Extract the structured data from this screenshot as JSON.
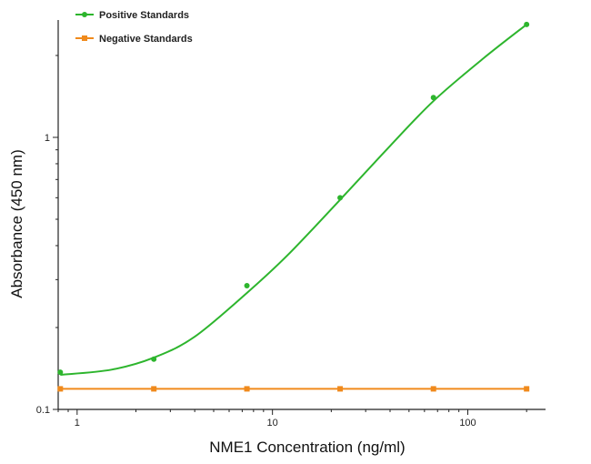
{
  "chart_data": {
    "type": "scatter",
    "xlabel": "NME1 Concentration (ng/ml)",
    "ylabel": "Absorbance (450 nm)",
    "x_scale": "log",
    "y_scale": "log",
    "xlim": [
      0.8,
      250
    ],
    "ylim": [
      0.1,
      2.7
    ],
    "x_ticks": [
      1,
      10,
      100
    ],
    "x_tick_labels": [
      "1",
      "10",
      "100"
    ],
    "y_ticks": [
      0.1,
      1
    ],
    "y_tick_labels": [
      "0.1",
      "1"
    ],
    "grid": false,
    "legend_position": "top-left",
    "series": [
      {
        "name": "Positive Standards",
        "color": "#2db52d",
        "marker": "circle",
        "fit_curve": true,
        "points": [
          {
            "x": 0.82,
            "y": 0.137
          },
          {
            "x": 2.47,
            "y": 0.153
          },
          {
            "x": 7.4,
            "y": 0.285
          },
          {
            "x": 22.2,
            "y": 0.6
          },
          {
            "x": 66.7,
            "y": 1.4
          },
          {
            "x": 200,
            "y": 2.6
          }
        ],
        "curve": [
          {
            "x": 0.82,
            "y": 0.134
          },
          {
            "x": 1.5,
            "y": 0.14
          },
          {
            "x": 2.47,
            "y": 0.155
          },
          {
            "x": 4,
            "y": 0.185
          },
          {
            "x": 7.4,
            "y": 0.268
          },
          {
            "x": 12,
            "y": 0.37
          },
          {
            "x": 22.2,
            "y": 0.59
          },
          {
            "x": 40,
            "y": 0.93
          },
          {
            "x": 66.7,
            "y": 1.36
          },
          {
            "x": 120,
            "y": 1.95
          },
          {
            "x": 200,
            "y": 2.6
          }
        ]
      },
      {
        "name": "Negative Standards",
        "color": "#f08a1c",
        "marker": "square",
        "fit_curve": false,
        "points": [
          {
            "x": 0.82,
            "y": 0.119
          },
          {
            "x": 2.47,
            "y": 0.119
          },
          {
            "x": 7.4,
            "y": 0.119
          },
          {
            "x": 22.2,
            "y": 0.119
          },
          {
            "x": 66.7,
            "y": 0.119
          },
          {
            "x": 200,
            "y": 0.119
          }
        ]
      }
    ]
  }
}
